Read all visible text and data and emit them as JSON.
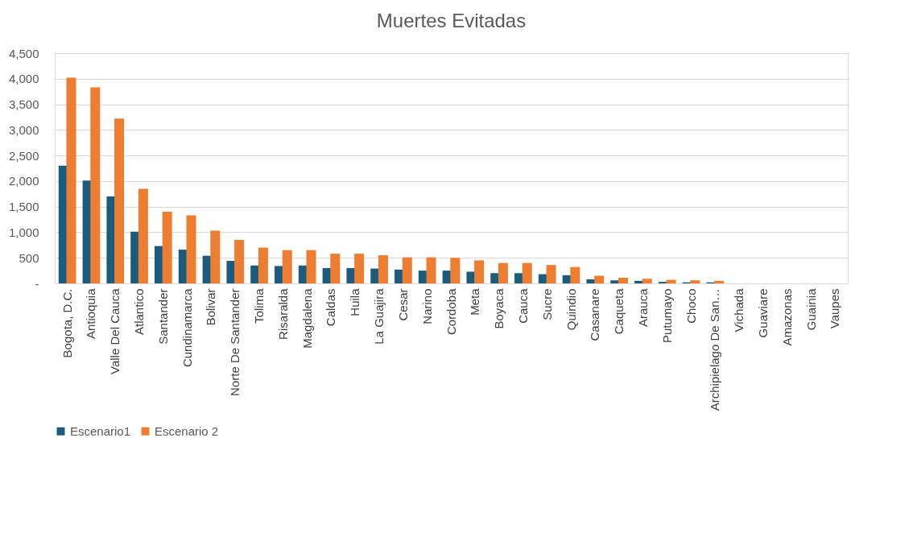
{
  "chart_data": {
    "type": "bar",
    "title": "Muertes Evitadas",
    "categories": [
      "Bogota, D.C.",
      "Antioquia",
      "Valle Del Cauca",
      "Atlantico",
      "Santander",
      "Cundinamarca",
      "Bolivar",
      "Norte De Santander",
      "Tolima",
      "Risaralda",
      "Magdalena",
      "Caldas",
      "Huila",
      "La Guajira",
      "Cesar",
      "Narino",
      "Cordoba",
      "Meta",
      "Boyaca",
      "Cauca",
      "Sucre",
      "Quindio",
      "Casanare",
      "Caqueta",
      "Arauca",
      "Putumayo",
      "Choco",
      "Archipielago De San…",
      "Vichada",
      "Guaviare",
      "Amazonas",
      "Guainia",
      "Vaupes"
    ],
    "series": [
      {
        "name": "Escenario1",
        "color": "#1b5c7e",
        "values": [
          2300,
          2010,
          1700,
          1010,
          730,
          660,
          540,
          440,
          350,
          340,
          350,
          300,
          300,
          290,
          270,
          250,
          250,
          230,
          200,
          200,
          180,
          160,
          80,
          60,
          50,
          30,
          20,
          20,
          null,
          0,
          0,
          0,
          0
        ]
      },
      {
        "name": "Escenario 2",
        "color": "#ed7d31",
        "values": [
          4020,
          3830,
          3220,
          1850,
          1400,
          1330,
          1030,
          850,
          700,
          650,
          650,
          580,
          580,
          550,
          510,
          510,
          500,
          450,
          400,
          400,
          360,
          320,
          150,
          110,
          90,
          70,
          60,
          50,
          null,
          0,
          0,
          0,
          0
        ]
      }
    ],
    "ylim": [
      0,
      4500
    ],
    "yticks": [
      {
        "value": 0,
        "label": "-"
      },
      500,
      {
        "value": 1000,
        "label": "1,000"
      },
      {
        "value": 1500,
        "label": "1,500"
      },
      {
        "value": 2000,
        "label": "2,000"
      },
      {
        "value": 2500,
        "label": "2,500"
      },
      {
        "value": 3000,
        "label": "3,000"
      },
      {
        "value": 3500,
        "label": "3,500"
      },
      {
        "value": 4000,
        "label": "4,000"
      },
      {
        "value": 4500,
        "label": "4,500"
      }
    ],
    "grid": "y",
    "legend": "bottom"
  }
}
